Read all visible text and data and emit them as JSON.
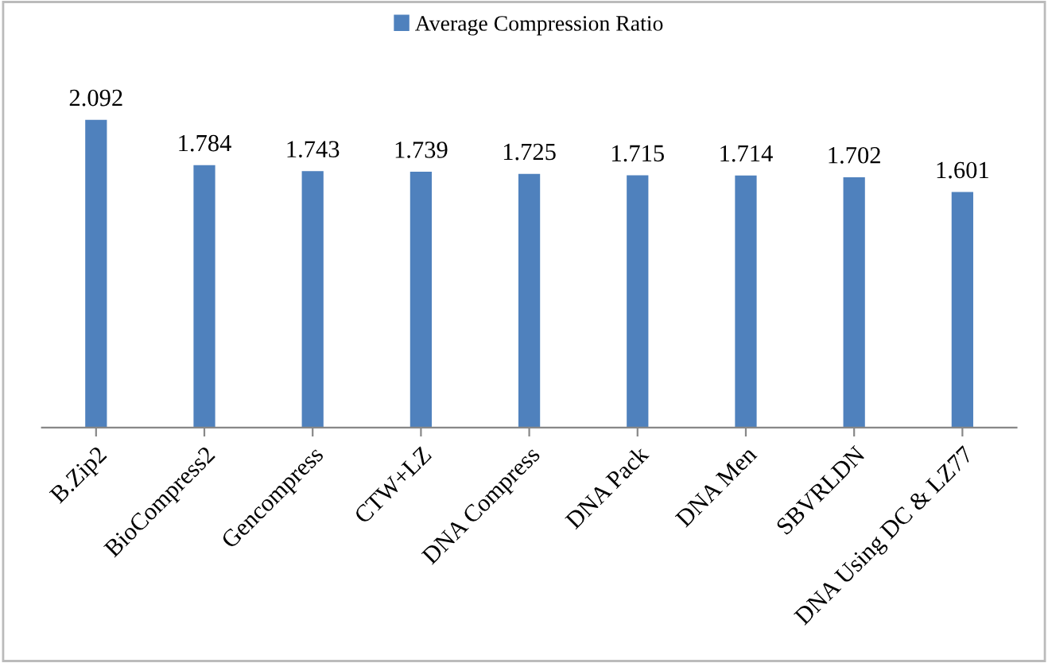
{
  "chart_data": {
    "type": "bar",
    "categories": [
      "B.Zip2",
      "BioCompress2",
      "Gencompress",
      "CTW+LZ",
      "DNA Compress",
      "DNA Pack",
      "DNA Men",
      "SBVRLDN",
      "DNA Using DC & LZ77"
    ],
    "series": [
      {
        "name": "Average Compression Ratio",
        "color": "#4f81bd",
        "values": [
          2.092,
          1.784,
          1.743,
          1.739,
          1.725,
          1.715,
          1.714,
          1.702,
          1.601
        ]
      }
    ],
    "data_labels": true,
    "legend": "top",
    "grid": false
  }
}
